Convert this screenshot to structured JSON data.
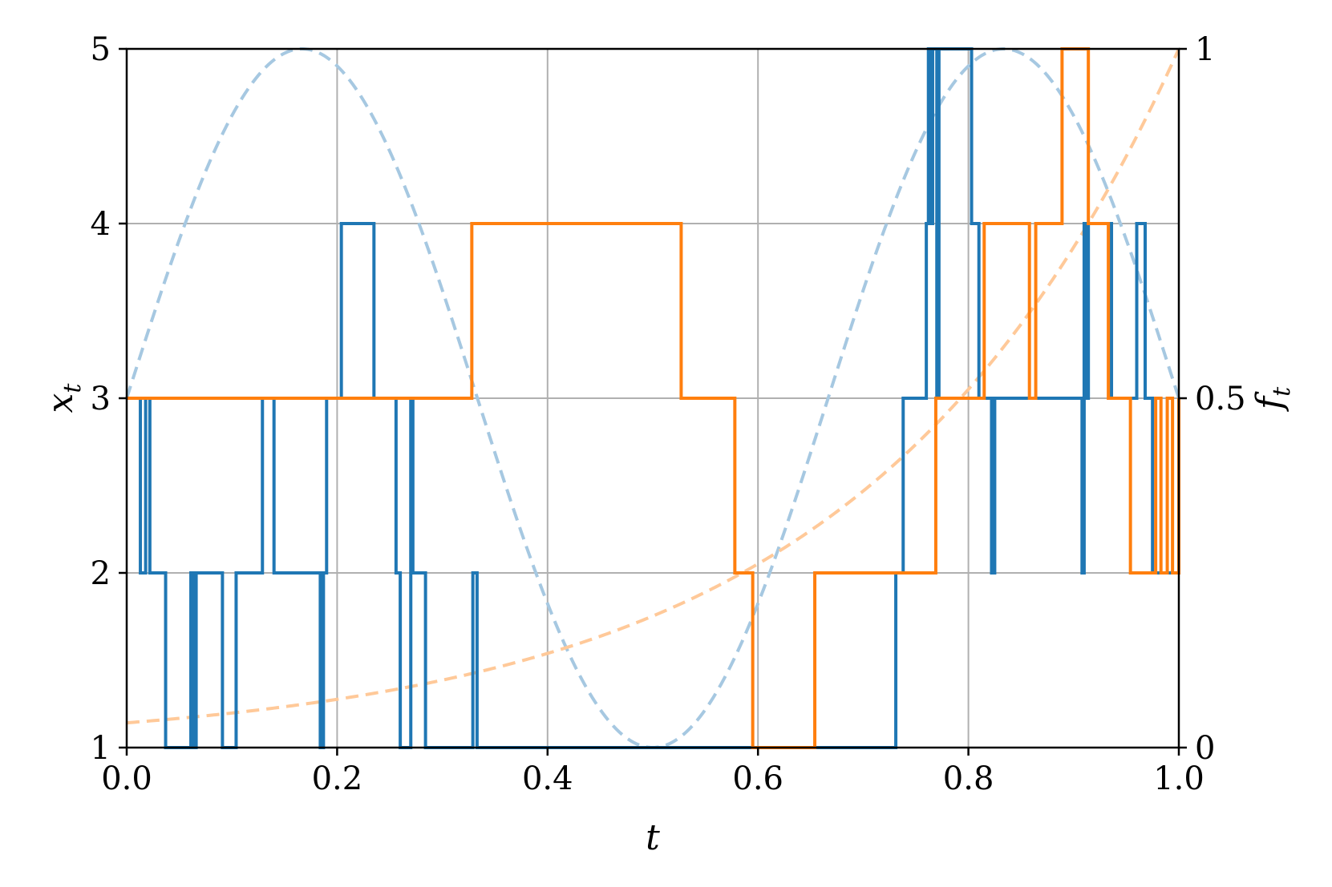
{
  "chart_data": {
    "type": "line",
    "xlabel": "t",
    "ylabel": {
      "base": "x",
      "sub": "t"
    },
    "y2label": {
      "base": "f",
      "sub": "t"
    },
    "xlim": [
      0.0,
      1.0
    ],
    "ylim": [
      1,
      5
    ],
    "y2lim": [
      0,
      1
    ],
    "grid": true,
    "x_ticks": [
      "0.0",
      "0.2",
      "0.4",
      "0.6",
      "0.8",
      "1.0"
    ],
    "y_ticks": [
      "1",
      "2",
      "3",
      "4",
      "5"
    ],
    "y2_ticks": [
      "0",
      "0.5",
      "1"
    ],
    "colors": {
      "blue": "#1f77b4",
      "orange": "#ff7f0e",
      "blue_faint": "#a6c8e1",
      "orange_faint": "#ffc999",
      "grid": "#b0b0b0"
    },
    "step_series": [
      {
        "color": "#1f77b4",
        "axis": "left",
        "t": [
          0.0,
          0.013,
          0.018,
          0.022,
          0.037,
          0.061,
          0.063,
          0.066,
          0.091,
          0.104,
          0.129,
          0.14,
          0.184,
          0.187,
          0.19,
          0.204,
          0.235,
          0.256,
          0.26,
          0.27,
          0.272,
          0.284,
          0.329,
          0.333,
          0.7,
          0.731,
          0.738,
          0.76,
          0.762,
          0.764,
          0.766,
          0.77,
          0.772,
          0.8,
          0.803,
          0.81,
          0.822,
          0.825,
          0.897,
          0.908,
          0.91,
          0.912,
          0.914,
          0.936,
          0.96,
          0.968,
          0.975,
          1.0
        ],
        "x": [
          3,
          2,
          3,
          2,
          1,
          2,
          1,
          2,
          1,
          2,
          3,
          2,
          1,
          2,
          3,
          4,
          3,
          2,
          1,
          3,
          2,
          1,
          2,
          1,
          1,
          2,
          3,
          4,
          5,
          4,
          5,
          3,
          5,
          5,
          4,
          3,
          2,
          3,
          3,
          2,
          4,
          3,
          4,
          3,
          4,
          3,
          2,
          3
        ]
      },
      {
        "color": "#ff7f0e",
        "axis": "left",
        "t": [
          0.0,
          0.328,
          0.527,
          0.578,
          0.595,
          0.654,
          0.769,
          0.815,
          0.858,
          0.864,
          0.889,
          0.914,
          0.933,
          0.954,
          0.978,
          0.983,
          0.989,
          0.994,
          1.0
        ],
        "x": [
          3,
          4,
          3,
          2,
          1,
          2,
          3,
          4,
          3,
          4,
          5,
          4,
          3,
          2,
          3,
          2,
          3,
          2,
          3
        ]
      }
    ],
    "dashed_series": [
      {
        "formula": "f(t) = 0.5 + 0.5 * sin(3*pi*t)",
        "color": "#a6c8e1",
        "axis": "right"
      },
      {
        "formula": "f(t) = exp(3.34 * (t - 1))",
        "color": "#ffc999",
        "axis": "right"
      }
    ]
  }
}
